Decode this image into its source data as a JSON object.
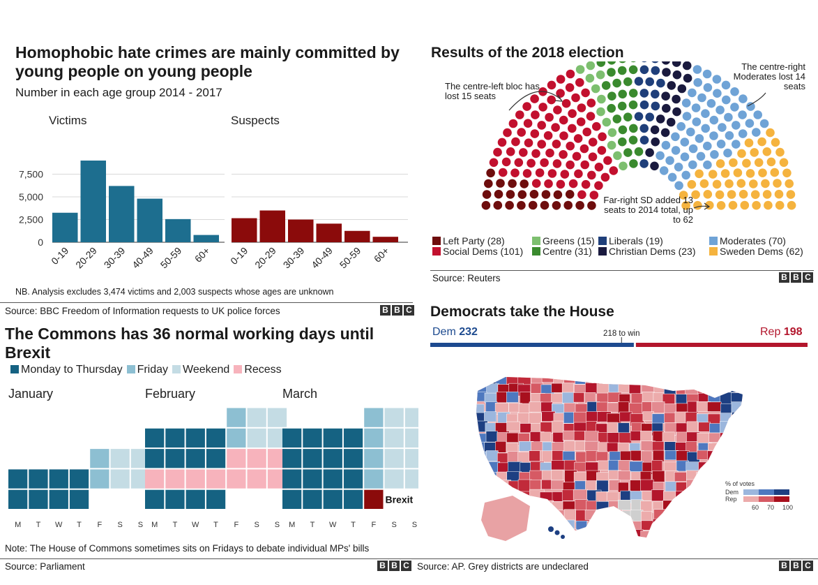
{
  "hate_crimes": {
    "title": "Homophobic hate crimes are mainly committed by young people on young people",
    "subtitle": "Number in each age group 2014 - 2017",
    "note": "NB. Analysis excludes 3,474 victims and 2,003 suspects whose ages are unknown",
    "source": "Source: BBC Freedom of Information requests to UK police forces",
    "colors": {
      "victims": "#1d6e8f",
      "suspects": "#8b0b0b"
    }
  },
  "election": {
    "title": "Results of the 2018 election",
    "annotations": {
      "left": "The centre-left bloc has lost 15 seats",
      "right": "The centre-right Moderates lost 14 seats",
      "sd": "Far-right SD added 13 seats to 2014 total, up to 62"
    },
    "source": "Source: Reuters"
  },
  "commons": {
    "title": "The Commons has 36 normal working days until Brexit",
    "legend": [
      "Monday to Thursday",
      "Friday",
      "Weekend",
      "Recess"
    ],
    "months": [
      "January",
      "February",
      "March"
    ],
    "weekdays": [
      "M",
      "T",
      "W",
      "T",
      "F",
      "S",
      "S"
    ],
    "brexit_label": "Brexit",
    "note": "Note: The House of Commons sometimes sits on Fridays to debate individual MPs' bills",
    "source": "Source: Parliament",
    "colors": {
      "mon_thu": "#156282",
      "friday": "#8dbfd2",
      "weekend": "#c4dce4",
      "recess": "#f7b3bc",
      "brexit": "#8b0b0b"
    }
  },
  "house": {
    "title": "Democrats take the House",
    "dem_label": "Dem",
    "dem_seats": "232",
    "rep_label": "Rep",
    "rep_seats": "198",
    "threshold": "218 to win",
    "map_legend": {
      "title": "% of votes",
      "dem": "Dem",
      "rep": "Rep",
      "ticks": [
        "60",
        "70",
        "100"
      ]
    },
    "source": "Source: AP. Grey districts are undeclared",
    "colors": {
      "dem": "#1d4a8f",
      "rep": "#b3162c"
    }
  },
  "bbc_logo": [
    "B",
    "B",
    "C"
  ],
  "chart_data": [
    {
      "type": "bar",
      "title": "Homophobic hate crimes are mainly committed by young people on young people",
      "subtitle": "Number in each age group 2014 - 2017",
      "categories": [
        "0-19",
        "20-29",
        "30-39",
        "40-49",
        "50-59",
        "60+"
      ],
      "series": [
        {
          "name": "Victims",
          "values": [
            3250,
            9000,
            6200,
            4800,
            2550,
            800
          ]
        },
        {
          "name": "Suspects",
          "values": [
            2650,
            3500,
            2500,
            2050,
            1250,
            600
          ]
        }
      ],
      "yticks": [
        0,
        2500,
        5000,
        7500
      ],
      "ytick_labels": [
        "0",
        "2,500",
        "5,000",
        "7,500"
      ],
      "ylim": [
        0,
        9000
      ],
      "grid": true
    },
    {
      "type": "pie",
      "title": "Results of the 2018 election",
      "categories": [
        "Left Party",
        "Social Dems",
        "Greens",
        "Centre",
        "Liberals",
        "Christian Dems",
        "Moderates",
        "Sweden Dems"
      ],
      "legend_labels": [
        "Left Party (28)",
        "Social Dems (101)",
        "Greens (15)",
        "Centre (31)",
        "Liberals (19)",
        "Christian Dems (23)",
        "Moderates (70)",
        "Sweden Dems (62)"
      ],
      "values": [
        28,
        101,
        15,
        31,
        19,
        23,
        70,
        62
      ],
      "colors": [
        "#6e0d0d",
        "#c2102e",
        "#7dbf6f",
        "#3a8a2e",
        "#1f3f7a",
        "#1a1a3e",
        "#6fa3d6",
        "#f5b33e"
      ]
    },
    {
      "type": "table",
      "title": "The Commons has 36 normal working days until Brexit",
      "columns": [
        "M",
        "T",
        "W",
        "T",
        "F",
        "S",
        "S"
      ],
      "months": [
        {
          "name": "January",
          "rows": [
            [
              "",
              "",
              "",
              "",
              "friday",
              "weekend",
              "weekend"
            ],
            [
              "mon_thu",
              "mon_thu",
              "mon_thu",
              "mon_thu",
              "friday",
              "weekend",
              "weekend"
            ],
            [
              "mon_thu",
              "mon_thu",
              "mon_thu",
              "mon_thu",
              "",
              "",
              ""
            ]
          ]
        },
        {
          "name": "February",
          "rows": [
            [
              "",
              "",
              "",
              "",
              "friday",
              "weekend",
              "weekend"
            ],
            [
              "mon_thu",
              "mon_thu",
              "mon_thu",
              "mon_thu",
              "friday",
              "weekend",
              "weekend"
            ],
            [
              "mon_thu",
              "mon_thu",
              "mon_thu",
              "mon_thu",
              "recess",
              "recess",
              "recess"
            ],
            [
              "recess",
              "recess",
              "recess",
              "recess",
              "recess",
              "recess",
              "recess"
            ],
            [
              "mon_thu",
              "mon_thu",
              "mon_thu",
              "mon_thu",
              "",
              "",
              ""
            ]
          ]
        },
        {
          "name": "March",
          "rows": [
            [
              "",
              "",
              "",
              "",
              "friday",
              "weekend",
              "weekend"
            ],
            [
              "mon_thu",
              "mon_thu",
              "mon_thu",
              "mon_thu",
              "friday",
              "weekend",
              "weekend"
            ],
            [
              "mon_thu",
              "mon_thu",
              "mon_thu",
              "mon_thu",
              "friday",
              "weekend",
              "weekend"
            ],
            [
              "mon_thu",
              "mon_thu",
              "mon_thu",
              "mon_thu",
              "friday",
              "weekend",
              "weekend"
            ],
            [
              "mon_thu",
              "mon_thu",
              "mon_thu",
              "mon_thu",
              "brexit",
              "",
              ""
            ]
          ]
        }
      ]
    },
    {
      "type": "bar",
      "title": "Democrats take the House",
      "categories": [
        "Dem",
        "Rep"
      ],
      "values": [
        232,
        198
      ],
      "threshold": 218,
      "threshold_label": "218 to win"
    }
  ]
}
